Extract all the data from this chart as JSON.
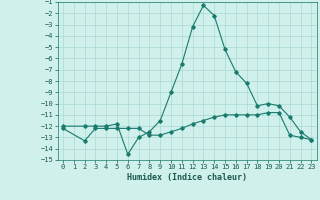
{
  "xlabel": "Humidex (Indice chaleur)",
  "background_color": "#cff0eb",
  "grid_color": "#aad8d3",
  "line_color": "#1a7a6e",
  "xlim": [
    -0.5,
    23.5
  ],
  "ylim": [
    -15,
    -1
  ],
  "yticks": [
    -15,
    -14,
    -13,
    -12,
    -11,
    -10,
    -9,
    -8,
    -7,
    -6,
    -5,
    -4,
    -3,
    -2,
    -1
  ],
  "xticks": [
    0,
    1,
    2,
    3,
    4,
    5,
    6,
    7,
    8,
    9,
    10,
    11,
    12,
    13,
    14,
    15,
    16,
    17,
    18,
    19,
    20,
    21,
    22,
    23
  ],
  "line1_x": [
    0,
    2,
    3,
    4,
    5,
    6,
    7,
    8,
    9,
    10,
    11,
    12,
    13,
    14,
    15,
    16,
    17,
    18,
    19,
    20,
    21,
    22,
    23
  ],
  "line1_y": [
    -12,
    -12,
    -12,
    -12,
    -11.8,
    -14.5,
    -13.0,
    -12.5,
    -11.5,
    -9.0,
    -6.5,
    -3.2,
    -1.3,
    -2.2,
    -5.2,
    -7.2,
    -8.2,
    -10.2,
    -10.0,
    -10.2,
    -11.2,
    -12.5,
    -13.2
  ],
  "line2_x": [
    0,
    2,
    3,
    4,
    5,
    6,
    7,
    8,
    9,
    10,
    11,
    12,
    13,
    14,
    15,
    16,
    17,
    18,
    19,
    20,
    21,
    22,
    23
  ],
  "line2_y": [
    -12.2,
    -13.3,
    -12.2,
    -12.2,
    -12.2,
    -12.2,
    -12.2,
    -12.8,
    -12.8,
    -12.5,
    -12.2,
    -11.8,
    -11.5,
    -11.2,
    -11.0,
    -11.0,
    -11.0,
    -11.0,
    -10.8,
    -10.8,
    -12.8,
    -13.0,
    -13.2
  ]
}
